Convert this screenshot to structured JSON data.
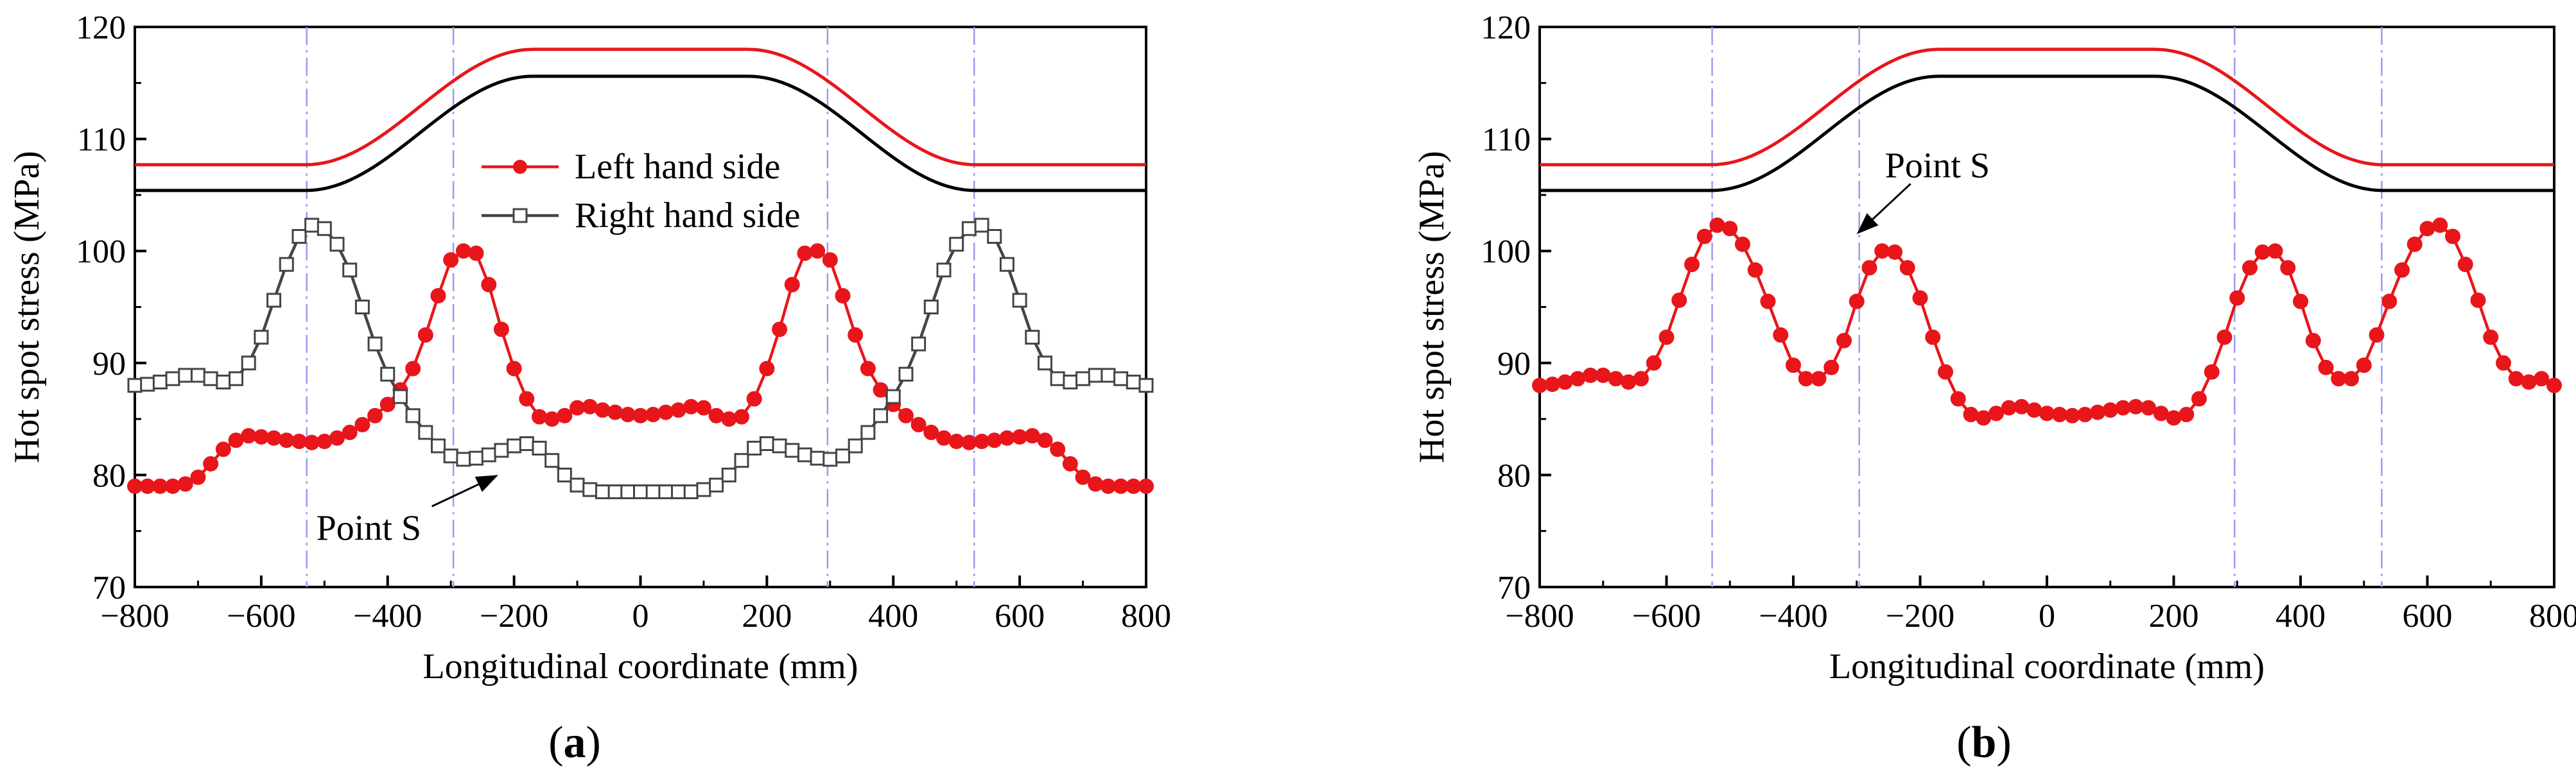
{
  "chart_data": [
    {
      "type": "line",
      "panel_label": "(a)",
      "xlabel": "Longitudinal coordinate (mm)",
      "ylabel": "Hot spot stress (MPa)",
      "xlim": [
        -800,
        800
      ],
      "ylim": [
        70,
        120
      ],
      "xticks": [
        -800,
        -600,
        -400,
        -200,
        0,
        200,
        400,
        600,
        800
      ],
      "yticks": [
        70,
        80,
        90,
        100,
        110,
        120
      ],
      "vlines": [
        -528,
        -296,
        296,
        528
      ],
      "legend": {
        "position": "top-center",
        "entries": [
          "Left hand side",
          "Right hand side"
        ]
      },
      "annotation": {
        "text": "Point S",
        "arrow_from": [
          -330,
          77.2
        ],
        "arrow_to": [
          -225,
          80.0
        ]
      },
      "schematic_red": {
        "low": 107.7,
        "high": 118.0,
        "ramp_start": 170,
        "ramp_end": 530
      },
      "schematic_black": {
        "low": 105.4,
        "high": 115.6,
        "ramp_start": 170,
        "ramp_end": 530
      },
      "series": [
        {
          "name": "Left hand side",
          "color": "#e8161b",
          "marker": "circle",
          "points": [
            [
              -800,
              79.0
            ],
            [
              -780,
              79.0
            ],
            [
              -760,
              79.0
            ],
            [
              -740,
              79.0
            ],
            [
              -720,
              79.2
            ],
            [
              -700,
              79.8
            ],
            [
              -680,
              81.0
            ],
            [
              -660,
              82.3
            ],
            [
              -640,
              83.1
            ],
            [
              -620,
              83.5
            ],
            [
              -600,
              83.4
            ],
            [
              -580,
              83.3
            ],
            [
              -560,
              83.1
            ],
            [
              -540,
              83.0
            ],
            [
              -520,
              82.9
            ],
            [
              -500,
              83.0
            ],
            [
              -480,
              83.3
            ],
            [
              -460,
              83.8
            ],
            [
              -440,
              84.5
            ],
            [
              -420,
              85.3
            ],
            [
              -400,
              86.3
            ],
            [
              -380,
              87.6
            ],
            [
              -360,
              89.5
            ],
            [
              -340,
              92.5
            ],
            [
              -320,
              96.0
            ],
            [
              -300,
              99.2
            ],
            [
              -280,
              100.0
            ],
            [
              -260,
              99.8
            ],
            [
              -240,
              97.0
            ],
            [
              -220,
              93.0
            ],
            [
              -200,
              89.5
            ],
            [
              -180,
              86.8
            ],
            [
              -160,
              85.2
            ],
            [
              -140,
              85.0
            ],
            [
              -120,
              85.3
            ],
            [
              -100,
              86.0
            ],
            [
              -80,
              86.1
            ],
            [
              -60,
              85.8
            ],
            [
              -40,
              85.6
            ],
            [
              -20,
              85.4
            ],
            [
              0,
              85.3
            ],
            [
              20,
              85.4
            ],
            [
              40,
              85.6
            ],
            [
              60,
              85.8
            ],
            [
              80,
              86.1
            ],
            [
              100,
              86.0
            ],
            [
              120,
              85.3
            ],
            [
              140,
              85.0
            ],
            [
              160,
              85.2
            ],
            [
              180,
              86.8
            ],
            [
              200,
              89.5
            ],
            [
              220,
              93.0
            ],
            [
              240,
              97.0
            ],
            [
              260,
              99.8
            ],
            [
              280,
              100.0
            ],
            [
              300,
              99.2
            ],
            [
              320,
              96.0
            ],
            [
              340,
              92.5
            ],
            [
              360,
              89.5
            ],
            [
              380,
              87.6
            ],
            [
              400,
              86.3
            ],
            [
              420,
              85.3
            ],
            [
              440,
              84.5
            ],
            [
              460,
              83.8
            ],
            [
              480,
              83.3
            ],
            [
              500,
              83.0
            ],
            [
              520,
              82.9
            ],
            [
              540,
              83.0
            ],
            [
              560,
              83.1
            ],
            [
              580,
              83.3
            ],
            [
              600,
              83.4
            ],
            [
              620,
              83.5
            ],
            [
              640,
              83.1
            ],
            [
              660,
              82.3
            ],
            [
              680,
              81.0
            ],
            [
              700,
              79.8
            ],
            [
              720,
              79.2
            ],
            [
              740,
              79.0
            ],
            [
              760,
              79.0
            ],
            [
              780,
              79.0
            ],
            [
              800,
              79.0
            ]
          ]
        },
        {
          "name": "Right hand side",
          "color": "#444444",
          "marker": "square",
          "points": [
            [
              -800,
              88.0
            ],
            [
              -780,
              88.1
            ],
            [
              -760,
              88.3
            ],
            [
              -740,
              88.6
            ],
            [
              -720,
              88.9
            ],
            [
              -700,
              88.9
            ],
            [
              -680,
              88.6
            ],
            [
              -660,
              88.3
            ],
            [
              -640,
              88.6
            ],
            [
              -620,
              90.0
            ],
            [
              -600,
              92.3
            ],
            [
              -580,
              95.6
            ],
            [
              -560,
              98.8
            ],
            [
              -540,
              101.3
            ],
            [
              -520,
              102.3
            ],
            [
              -500,
              102.0
            ],
            [
              -480,
              100.6
            ],
            [
              -460,
              98.3
            ],
            [
              -440,
              95.0
            ],
            [
              -420,
              91.7
            ],
            [
              -400,
              89.0
            ],
            [
              -380,
              87.0
            ],
            [
              -360,
              85.3
            ],
            [
              -340,
              83.8
            ],
            [
              -320,
              82.6
            ],
            [
              -300,
              81.7
            ],
            [
              -280,
              81.4
            ],
            [
              -260,
              81.5
            ],
            [
              -240,
              81.8
            ],
            [
              -220,
              82.2
            ],
            [
              -200,
              82.6
            ],
            [
              -180,
              82.8
            ],
            [
              -160,
              82.4
            ],
            [
              -140,
              81.3
            ],
            [
              -120,
              80.0
            ],
            [
              -100,
              79.1
            ],
            [
              -80,
              78.7
            ],
            [
              -60,
              78.5
            ],
            [
              -40,
              78.5
            ],
            [
              -20,
              78.5
            ],
            [
              0,
              78.5
            ],
            [
              20,
              78.5
            ],
            [
              40,
              78.5
            ],
            [
              60,
              78.5
            ],
            [
              80,
              78.5
            ],
            [
              100,
              78.7
            ],
            [
              120,
              79.1
            ],
            [
              140,
              80.0
            ],
            [
              160,
              81.3
            ],
            [
              180,
              82.4
            ],
            [
              200,
              82.8
            ],
            [
              220,
              82.6
            ],
            [
              240,
              82.2
            ],
            [
              260,
              81.8
            ],
            [
              280,
              81.5
            ],
            [
              300,
              81.4
            ],
            [
              320,
              81.7
            ],
            [
              340,
              82.6
            ],
            [
              360,
              83.8
            ],
            [
              380,
              85.3
            ],
            [
              400,
              87.0
            ],
            [
              420,
              89.0
            ],
            [
              440,
              91.7
            ],
            [
              460,
              95.0
            ],
            [
              480,
              98.3
            ],
            [
              500,
              100.6
            ],
            [
              520,
              102.0
            ],
            [
              540,
              102.3
            ],
            [
              560,
              101.3
            ],
            [
              580,
              98.8
            ],
            [
              600,
              95.6
            ],
            [
              620,
              92.3
            ],
            [
              640,
              90.0
            ],
            [
              660,
              88.6
            ],
            [
              680,
              88.3
            ],
            [
              700,
              88.6
            ],
            [
              720,
              88.9
            ],
            [
              740,
              88.9
            ],
            [
              760,
              88.6
            ],
            [
              780,
              88.3
            ],
            [
              800,
              88.0
            ]
          ]
        }
      ]
    },
    {
      "type": "line",
      "panel_label": "(b)",
      "xlabel": "Longitudinal coordinate (mm)",
      "ylabel": "Hot spot stress (MPa)",
      "xlim": [
        -800,
        800
      ],
      "ylim": [
        70,
        120
      ],
      "xticks": [
        -800,
        -600,
        -400,
        -200,
        0,
        200,
        400,
        600,
        800
      ],
      "yticks": [
        70,
        80,
        90,
        100,
        110,
        120
      ],
      "vlines": [
        -528,
        -296,
        296,
        528
      ],
      "annotation": {
        "text": "Point S",
        "arrow_from": [
          -215,
          106.0
        ],
        "arrow_to": [
          -300,
          101.5
        ]
      },
      "schematic_red": {
        "low": 107.7,
        "high": 118.0,
        "ramp_start": 170,
        "ramp_end": 530
      },
      "schematic_black": {
        "low": 105.4,
        "high": 115.6,
        "ramp_start": 170,
        "ramp_end": 530
      },
      "series": [
        {
          "name": "Left hand side",
          "color": "#e8161b",
          "marker": "circle",
          "points": [
            [
              -800,
              88.0
            ],
            [
              -780,
              88.1
            ],
            [
              -760,
              88.3
            ],
            [
              -740,
              88.6
            ],
            [
              -720,
              88.9
            ],
            [
              -700,
              88.9
            ],
            [
              -680,
              88.6
            ],
            [
              -660,
              88.3
            ],
            [
              -640,
              88.6
            ],
            [
              -620,
              90.0
            ],
            [
              -600,
              92.3
            ],
            [
              -580,
              95.6
            ],
            [
              -560,
              98.8
            ],
            [
              -540,
              101.3
            ],
            [
              -520,
              102.3
            ],
            [
              -500,
              102.0
            ],
            [
              -480,
              100.6
            ],
            [
              -460,
              98.3
            ],
            [
              -440,
              95.5
            ],
            [
              -420,
              92.5
            ],
            [
              -400,
              89.8
            ],
            [
              -380,
              88.6
            ],
            [
              -360,
              88.6
            ],
            [
              -340,
              89.6
            ],
            [
              -320,
              92.0
            ],
            [
              -300,
              95.5
            ],
            [
              -280,
              98.5
            ],
            [
              -260,
              100.0
            ],
            [
              -240,
              99.9
            ],
            [
              -220,
              98.5
            ],
            [
              -200,
              95.8
            ],
            [
              -180,
              92.3
            ],
            [
              -160,
              89.2
            ],
            [
              -140,
              86.8
            ],
            [
              -120,
              85.4
            ],
            [
              -100,
              85.1
            ],
            [
              -80,
              85.5
            ],
            [
              -60,
              86.0
            ],
            [
              -40,
              86.1
            ],
            [
              -20,
              85.8
            ],
            [
              0,
              85.5
            ],
            [
              20,
              85.4
            ],
            [
              40,
              85.3
            ],
            [
              60,
              85.4
            ],
            [
              80,
              85.6
            ],
            [
              100,
              85.8
            ],
            [
              120,
              86.0
            ],
            [
              140,
              86.1
            ],
            [
              160,
              86.0
            ],
            [
              180,
              85.5
            ],
            [
              200,
              85.1
            ],
            [
              220,
              85.4
            ],
            [
              240,
              86.8
            ],
            [
              260,
              89.2
            ],
            [
              280,
              92.3
            ],
            [
              300,
              95.8
            ],
            [
              320,
              98.5
            ],
            [
              340,
              99.9
            ],
            [
              360,
              100.0
            ],
            [
              380,
              98.5
            ],
            [
              400,
              95.5
            ],
            [
              420,
              92.0
            ],
            [
              440,
              89.6
            ],
            [
              460,
              88.6
            ],
            [
              480,
              88.6
            ],
            [
              500,
              89.8
            ],
            [
              520,
              92.5
            ],
            [
              540,
              95.5
            ],
            [
              560,
              98.3
            ],
            [
              580,
              100.6
            ],
            [
              600,
              102.0
            ],
            [
              620,
              102.3
            ],
            [
              640,
              101.3
            ],
            [
              660,
              98.8
            ],
            [
              680,
              95.6
            ],
            [
              700,
              92.3
            ],
            [
              720,
              90.0
            ],
            [
              740,
              88.6
            ],
            [
              760,
              88.3
            ],
            [
              780,
              88.6
            ],
            [
              800,
              88.0
            ]
          ]
        }
      ]
    }
  ]
}
